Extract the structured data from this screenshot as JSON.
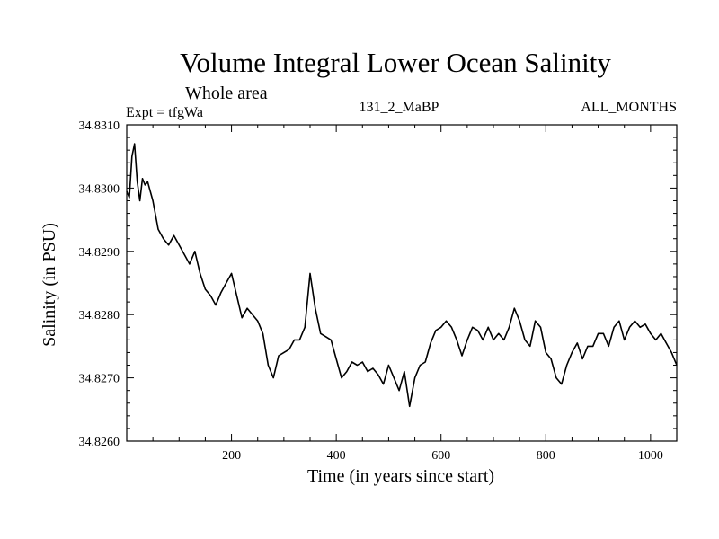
{
  "chart_data": {
    "type": "line",
    "title": "Volume Integral Lower Ocean Salinity",
    "subtitle": "Whole area",
    "header": {
      "left": "Expt = tfgWa",
      "center": "131_2_MaBP",
      "right": "ALL_MONTHS"
    },
    "xlabel": "Time (in years since start)",
    "ylabel": "Salinity (in PSU)",
    "xlim": [
      0,
      1050
    ],
    "ylim": [
      34.826,
      34.831
    ],
    "x_ticks": [
      200,
      400,
      600,
      800,
      1000
    ],
    "x_tick_labels": [
      "200",
      "400",
      "600",
      "800",
      "1000"
    ],
    "y_ticks": [
      34.826,
      34.827,
      34.828,
      34.829,
      34.83,
      34.831
    ],
    "y_tick_labels": [
      "34.8260",
      "34.8270",
      "34.8280",
      "34.8290",
      "34.8300",
      "34.8310"
    ],
    "grid": false,
    "series": [
      {
        "name": "salinity",
        "x": [
          0,
          5,
          10,
          15,
          20,
          25,
          30,
          35,
          40,
          50,
          60,
          70,
          80,
          90,
          100,
          110,
          120,
          130,
          140,
          150,
          160,
          170,
          180,
          190,
          200,
          210,
          220,
          230,
          240,
          250,
          260,
          270,
          280,
          290,
          300,
          310,
          320,
          330,
          340,
          350,
          360,
          370,
          380,
          390,
          400,
          410,
          420,
          430,
          440,
          450,
          460,
          470,
          480,
          490,
          500,
          510,
          520,
          530,
          540,
          550,
          560,
          570,
          580,
          590,
          600,
          610,
          620,
          630,
          640,
          650,
          660,
          670,
          680,
          690,
          700,
          710,
          720,
          730,
          740,
          750,
          760,
          770,
          780,
          790,
          800,
          810,
          820,
          830,
          840,
          850,
          860,
          870,
          880,
          890,
          900,
          910,
          920,
          930,
          940,
          950,
          960,
          970,
          980,
          990,
          1000,
          1010,
          1020,
          1030,
          1040,
          1050
        ],
        "y": [
          34.82995,
          34.82985,
          34.8305,
          34.8307,
          34.8301,
          34.8298,
          34.83015,
          34.83005,
          34.8301,
          34.8298,
          34.82935,
          34.8292,
          34.8291,
          34.82925,
          34.8291,
          34.82895,
          34.8288,
          34.829,
          34.82865,
          34.8284,
          34.8283,
          34.82815,
          34.82835,
          34.8285,
          34.82865,
          34.8283,
          34.82795,
          34.8281,
          34.828,
          34.8279,
          34.8277,
          34.8272,
          34.827,
          34.82735,
          34.8274,
          34.82745,
          34.8276,
          34.8276,
          34.8278,
          34.82865,
          34.8281,
          34.8277,
          34.82765,
          34.8276,
          34.8273,
          34.827,
          34.8271,
          34.82725,
          34.8272,
          34.82725,
          34.8271,
          34.82715,
          34.82705,
          34.8269,
          34.8272,
          34.827,
          34.8268,
          34.8271,
          34.82655,
          34.827,
          34.8272,
          34.82725,
          34.82755,
          34.82775,
          34.8278,
          34.8279,
          34.8278,
          34.8276,
          34.82735,
          34.8276,
          34.8278,
          34.82775,
          34.8276,
          34.8278,
          34.8276,
          34.8277,
          34.8276,
          34.8278,
          34.8281,
          34.8279,
          34.8276,
          34.8275,
          34.8279,
          34.8278,
          34.8274,
          34.8273,
          34.827,
          34.8269,
          34.8272,
          34.8274,
          34.82755,
          34.8273,
          34.8275,
          34.8275,
          34.8277,
          34.8277,
          34.8275,
          34.8278,
          34.8279,
          34.8276,
          34.8278,
          34.8279,
          34.8278,
          34.82785,
          34.8277,
          34.8276,
          34.8277,
          34.82755,
          34.8274,
          34.8272
        ]
      }
    ]
  },
  "colors": {
    "background": "#ffffff",
    "foreground": "#000000"
  }
}
